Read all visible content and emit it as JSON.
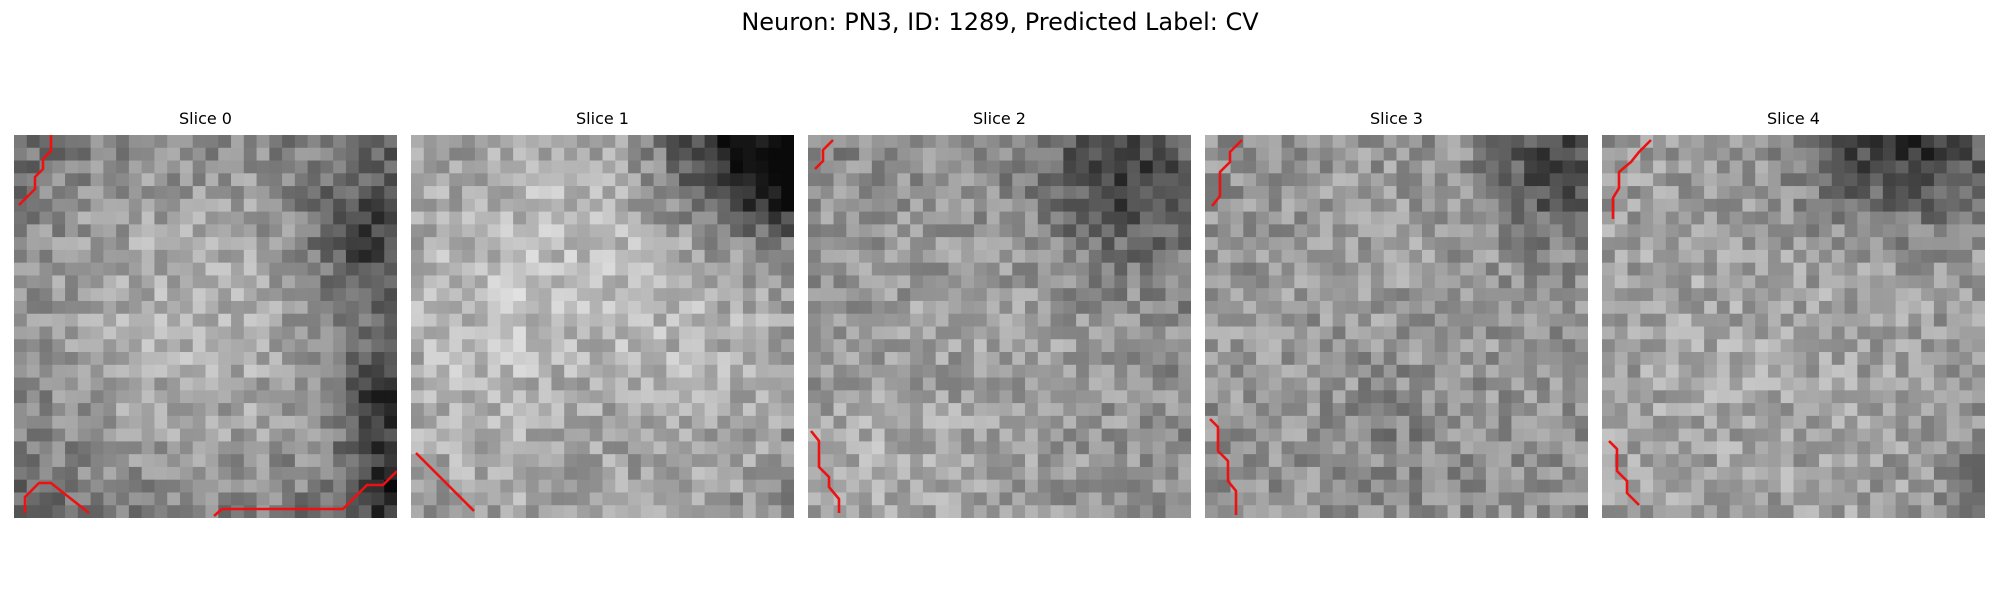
{
  "figure": {
    "title": "Neuron: PN3, ID: 1289, Predicted Label: CV"
  },
  "colors": {
    "background": "#ffffff",
    "contour": "#ee1111"
  },
  "colormap": "gray",
  "panels": [
    {
      "title": "Slice 0"
    },
    {
      "title": "Slice 1"
    },
    {
      "title": "Slice 2"
    },
    {
      "title": "Slice 3"
    },
    {
      "title": "Slice 4"
    }
  ]
}
